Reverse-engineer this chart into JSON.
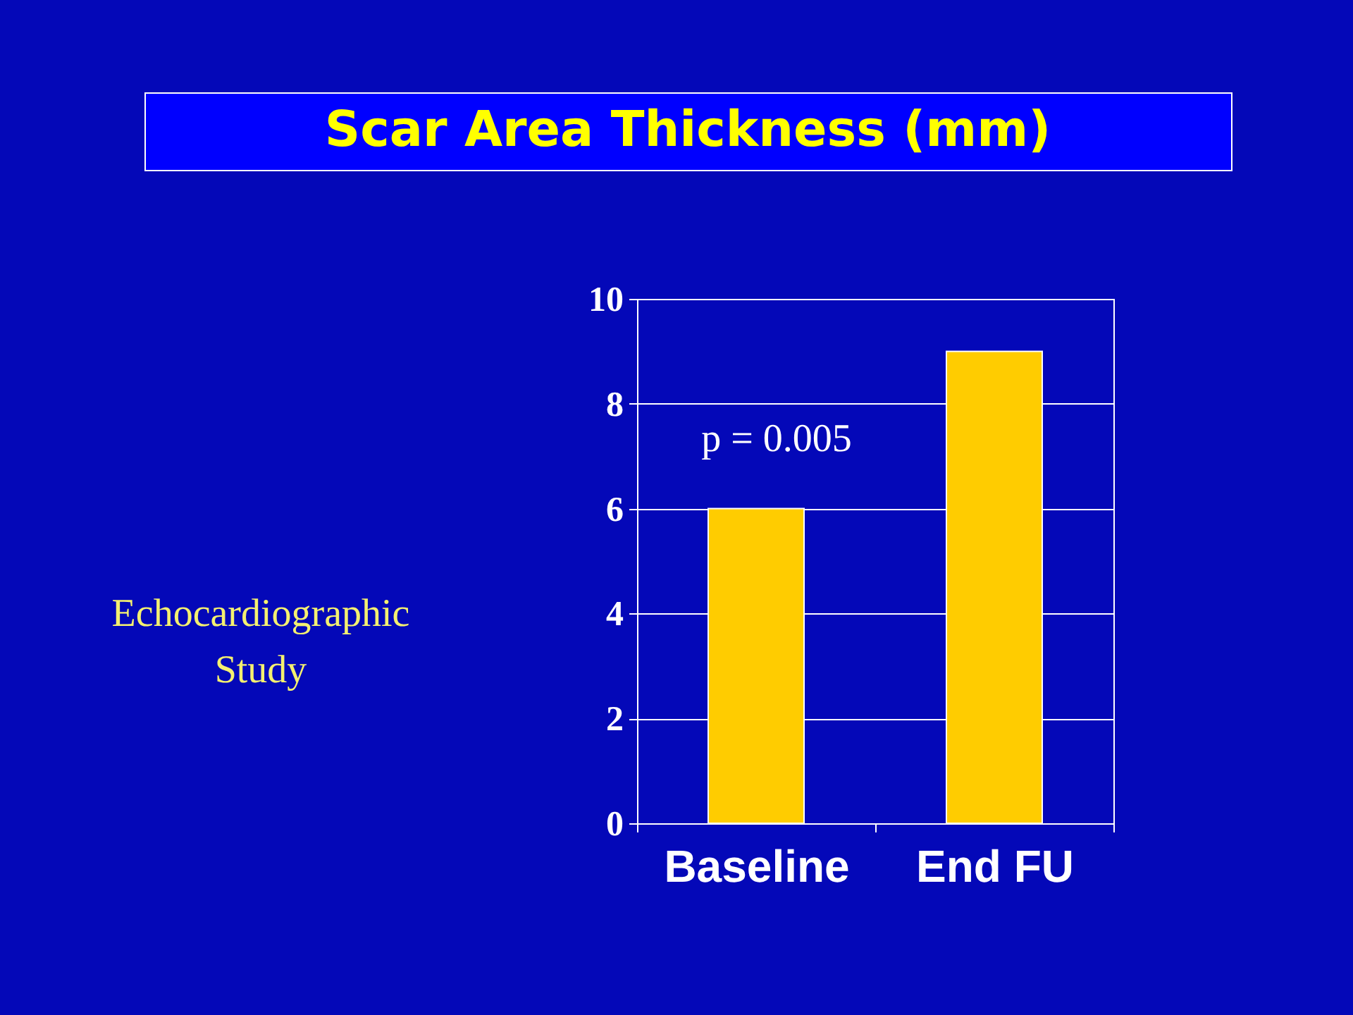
{
  "chart_data": {
    "type": "bar",
    "title": "Scar Area Thickness (mm)",
    "categories": [
      "Baseline",
      "End FU"
    ],
    "values": [
      6.0,
      9.0
    ],
    "color": "#ffcc00",
    "ylim": [
      0,
      10
    ],
    "yticks": [
      0,
      2,
      4,
      6,
      8,
      10
    ],
    "grid": "y",
    "annotations": [
      "p = 0.005",
      "Echocardiographic Study"
    ]
  }
}
